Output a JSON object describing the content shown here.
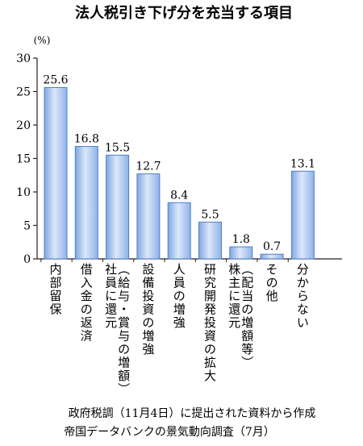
{
  "chart_data": {
    "type": "bar",
    "title": "法人税引き下げ分を充当する項目",
    "ylabel": "(%)",
    "ylim": [
      0,
      30
    ],
    "yticks": [
      0,
      5,
      10,
      15,
      20,
      25,
      30
    ],
    "grid": false,
    "categories": [
      "内部留保",
      "借入金の返済",
      "社員に還元（給与・賞与の増額）",
      "設備投資の増強",
      "人員の増強",
      "研究開発投資の拡大",
      "株主に還元（配当の増額等）",
      "その他",
      "分からない"
    ],
    "category_columns": [
      [
        "内部留保"
      ],
      [
        "借入金の返済"
      ],
      [
        "社員に還元",
        "（給与・賞与の増額）"
      ],
      [
        "設備投資の増強"
      ],
      [
        "人員の増強"
      ],
      [
        "研究開発投資の拡大"
      ],
      [
        "株主に還元",
        "（配当の増額等）"
      ],
      [
        "その他"
      ],
      [
        "分からない"
      ]
    ],
    "values": [
      25.6,
      16.8,
      15.5,
      12.7,
      8.4,
      5.5,
      1.8,
      0.7,
      13.1
    ],
    "value_labels": [
      "25.6",
      "16.8",
      "15.5",
      "12.7",
      "8.4",
      "5.5",
      "1.8",
      "0.7",
      "13.1"
    ],
    "colors": {
      "bar_top": "#eef4ff",
      "bar_mid": "#a9c6ef",
      "bar_edge": "#4f7fcc",
      "axis": "#222222"
    }
  },
  "footer": {
    "line1": "政府税調（11月4日）に提出された資料から作成",
    "line2": "帝国データバンクの景気動向調査（7月）"
  }
}
